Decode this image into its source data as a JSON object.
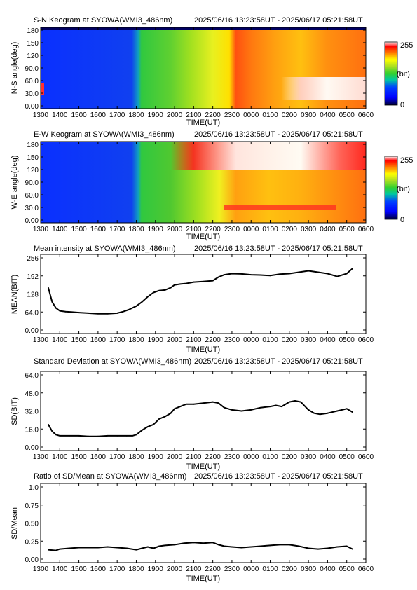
{
  "x_ticks": [
    "1300",
    "1400",
    "1500",
    "1600",
    "1700",
    "1800",
    "1900",
    "2000",
    "2100",
    "2200",
    "2300",
    "0000",
    "0100",
    "0200",
    "0300",
    "0400",
    "0500",
    "0600"
  ],
  "keograms": [
    {
      "title": "S-N Keogram at SYOWA(WMI3_486nm)",
      "time_range": "2025/06/16 13:23:58UT - 2025/06/17 05:21:58UT",
      "ylabel": "N-S angle(deg)",
      "yticks": [
        "0.00",
        "30.0",
        "60.0",
        "90.0",
        "120",
        "150",
        "180"
      ],
      "xlabel": "TIME(UT)",
      "colorbar": {
        "max": "255",
        "unit": "(bit)",
        "min": "0"
      }
    },
    {
      "title": "E-W Keogram at SYOWA(WMI3_486nm)",
      "time_range": "2025/06/16 13:23:58UT - 2025/06/17 05:21:58UT",
      "ylabel": "W-E angle(deg)",
      "yticks": [
        "0.00",
        "30.0",
        "60.0",
        "90.0",
        "120",
        "150",
        "180"
      ],
      "xlabel": "TIME(UT)",
      "colorbar": {
        "max": "255",
        "unit": "(bit)",
        "min": "0"
      }
    }
  ],
  "chart_data": [
    {
      "type": "line",
      "title": "Mean intensity at SYOWA(WMI3_486nm)",
      "time_range": "2025/06/16 13:23:58UT - 2025/06/17 05:21:58UT",
      "xlabel": "TIME(UT)",
      "ylabel": "MEAN(BIT)",
      "ylim": [
        0,
        256
      ],
      "yticks": [
        "0.00",
        "64.0",
        "128",
        "192",
        "256"
      ],
      "xlim": [
        13,
        30
      ],
      "x": [
        13.4,
        13.6,
        13.8,
        14.0,
        14.3,
        14.6,
        15.0,
        15.5,
        16.0,
        16.5,
        17.0,
        17.3,
        17.6,
        18.0,
        18.3,
        18.6,
        18.9,
        19.2,
        19.5,
        19.8,
        20.0,
        20.3,
        20.6,
        21.0,
        21.5,
        22.0,
        22.3,
        22.6,
        23.0,
        23.5,
        24.0,
        24.5,
        25.0,
        25.5,
        26.0,
        26.5,
        27.0,
        27.5,
        28.0,
        28.5,
        29.0,
        29.3
      ],
      "values": [
        150,
        100,
        78,
        68,
        65,
        64,
        62,
        60,
        58,
        58,
        60,
        65,
        72,
        85,
        100,
        118,
        133,
        140,
        142,
        150,
        160,
        163,
        165,
        170,
        172,
        175,
        188,
        196,
        200,
        199,
        196,
        195,
        193,
        198,
        200,
        205,
        210,
        205,
        200,
        190,
        200,
        218
      ]
    },
    {
      "type": "line",
      "title": "Standard Deviation at SYOWA(WMI3_486nm)",
      "time_range": "2025/06/16 13:23:58UT - 2025/06/17 05:21:58UT",
      "xlabel": "TIME(UT)",
      "ylabel": "SD(BIT)",
      "ylim": [
        0,
        64
      ],
      "yticks": [
        "0.00",
        "16.0",
        "32.0",
        "48.0",
        "64.0"
      ],
      "xlim": [
        13,
        30
      ],
      "x": [
        13.4,
        13.6,
        13.8,
        14.0,
        14.5,
        15.0,
        15.5,
        16.0,
        16.5,
        17.0,
        17.5,
        17.8,
        18.0,
        18.3,
        18.6,
        18.9,
        19.2,
        19.5,
        19.8,
        20.0,
        20.3,
        20.6,
        21.0,
        21.5,
        22.0,
        22.3,
        22.6,
        23.0,
        23.5,
        24.0,
        24.5,
        25.0,
        25.3,
        25.6,
        26.0,
        26.3,
        26.6,
        27.0,
        27.3,
        27.6,
        28.0,
        28.5,
        29.0,
        29.3
      ],
      "values": [
        20,
        14,
        11,
        10,
        10,
        10,
        9.5,
        9.5,
        10,
        10,
        10,
        10,
        11,
        15,
        18,
        20,
        25,
        27,
        30,
        34,
        36,
        38,
        38,
        39,
        40,
        39,
        35,
        33,
        32,
        33,
        35,
        36,
        37,
        36,
        40,
        41,
        40,
        33,
        30,
        29,
        30,
        32,
        34,
        31
      ]
    },
    {
      "type": "line",
      "title": "Ratio of SD/Mean at SYOWA(WMI3_486nm)",
      "time_range": "2025/06/16 13:23:58UT - 2025/06/17 05:21:58UT",
      "xlabel": "TIME(UT)",
      "ylabel": "SD/Mean",
      "ylim": [
        0,
        1.0
      ],
      "yticks": [
        "0.00",
        "0.25",
        "0.50",
        "0.75",
        "1.0"
      ],
      "xlim": [
        13,
        30
      ],
      "x": [
        13.4,
        13.8,
        14.0,
        14.5,
        15.0,
        15.5,
        16.0,
        16.5,
        17.0,
        17.5,
        18.0,
        18.3,
        18.6,
        18.9,
        19.2,
        19.5,
        20.0,
        20.5,
        21.0,
        21.5,
        22.0,
        22.3,
        22.6,
        23.0,
        23.5,
        24.0,
        24.5,
        25.0,
        25.5,
        26.0,
        26.5,
        27.0,
        27.5,
        28.0,
        28.5,
        29.0,
        29.3
      ],
      "values": [
        0.13,
        0.12,
        0.14,
        0.15,
        0.16,
        0.16,
        0.16,
        0.17,
        0.16,
        0.15,
        0.13,
        0.15,
        0.17,
        0.15,
        0.18,
        0.19,
        0.2,
        0.22,
        0.23,
        0.22,
        0.23,
        0.2,
        0.18,
        0.17,
        0.16,
        0.17,
        0.18,
        0.19,
        0.2,
        0.2,
        0.18,
        0.15,
        0.14,
        0.15,
        0.17,
        0.18,
        0.14
      ]
    }
  ]
}
